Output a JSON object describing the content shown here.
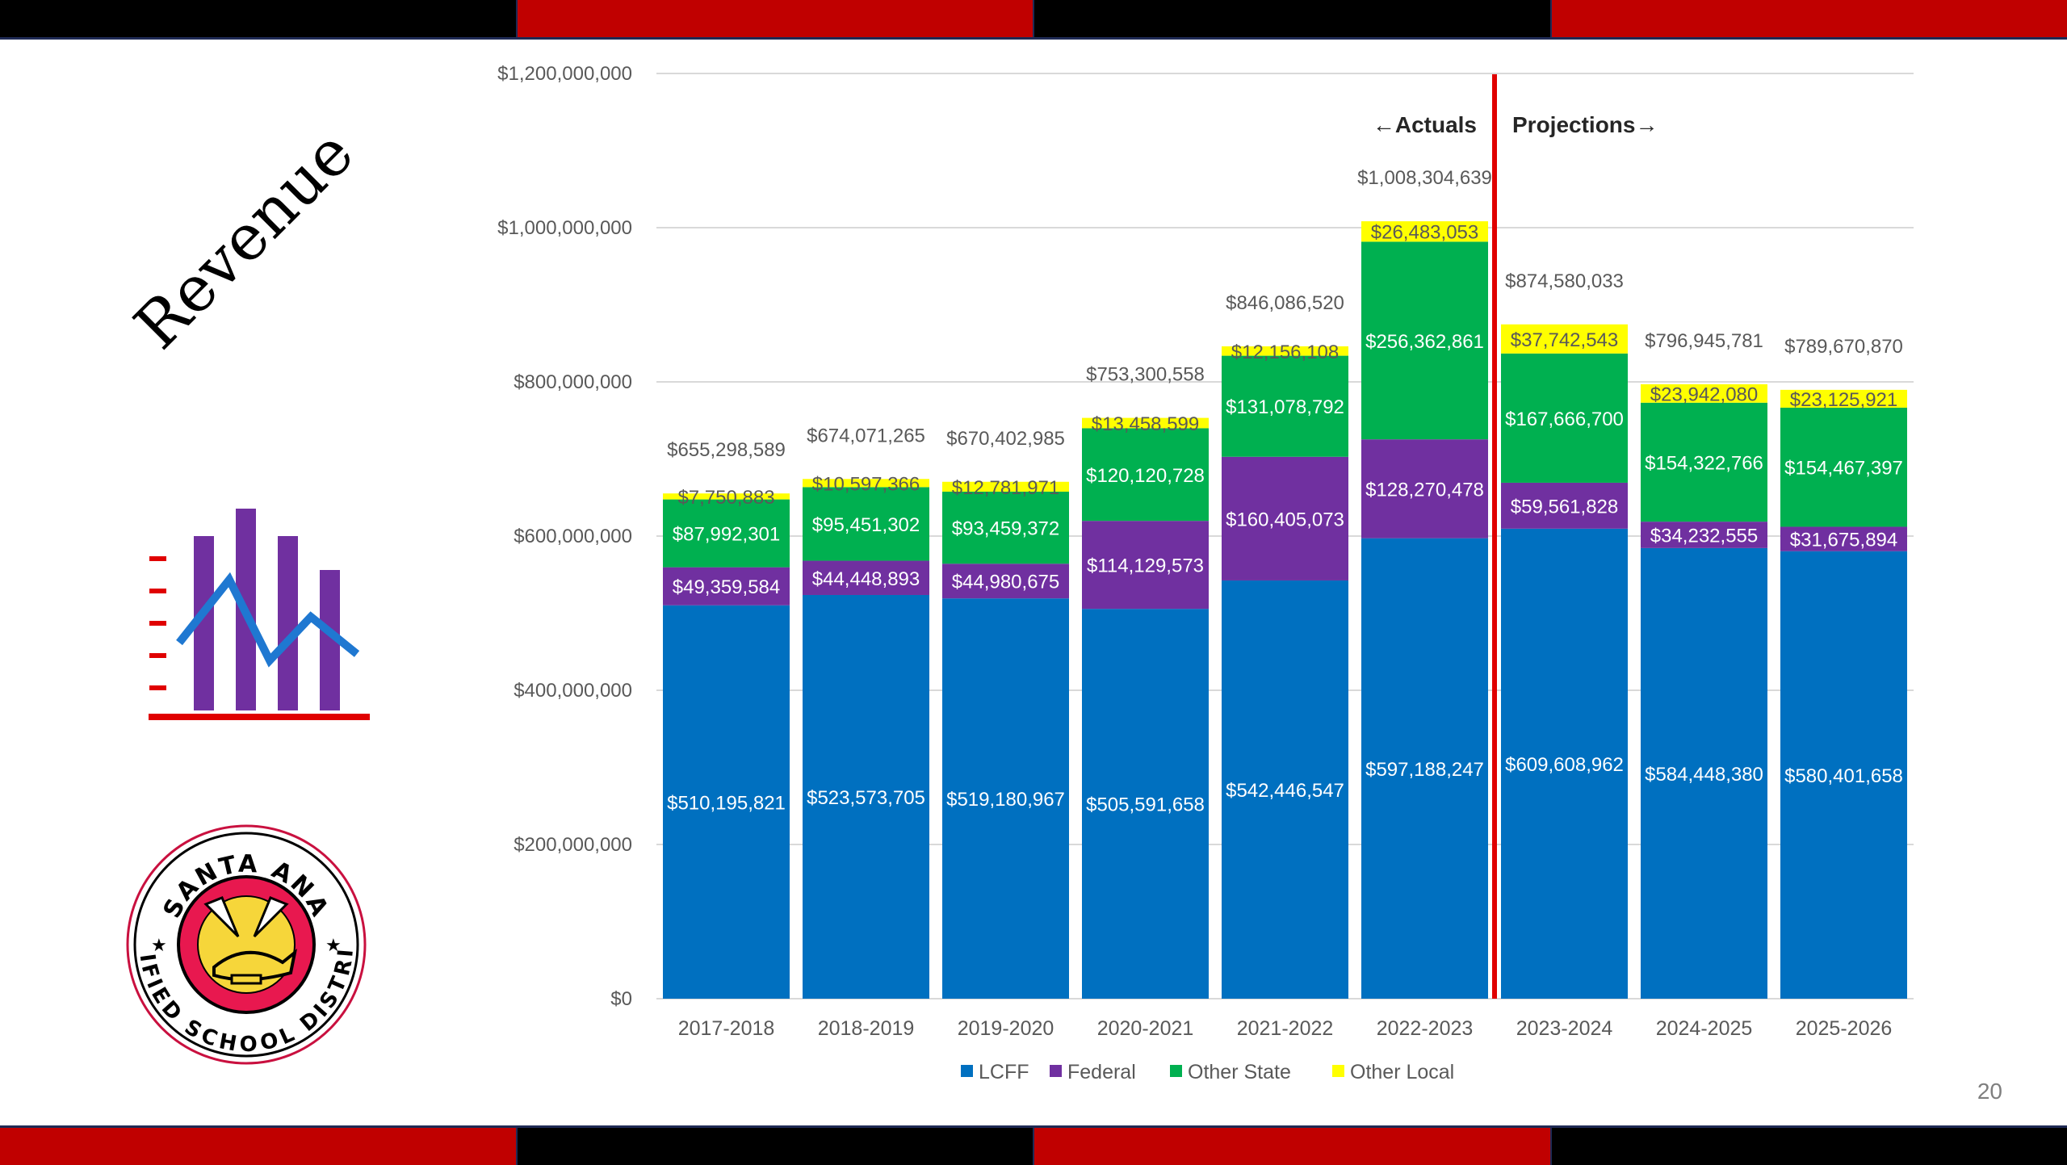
{
  "slide": {
    "title": "Revenue",
    "page_number": "20",
    "band_colors": [
      "#000000",
      "#c00000",
      "#000000",
      "#c00000"
    ],
    "band_colors_bottom": [
      "#c00000",
      "#000000",
      "#c00000",
      "#000000"
    ],
    "icon": "bar-line-chart-icon",
    "logo": {
      "name": "santa-ana-unified-school-district-seal",
      "text_top": "SANTA ANA",
      "text_bottom": "UNIFIED SCHOOL DISTRICT"
    }
  },
  "chart_data": {
    "type": "bar",
    "stacked": true,
    "title": "",
    "xlabel": "",
    "ylabel": "",
    "ylim": [
      0,
      1200000000
    ],
    "y_ticks": [
      0,
      200000000,
      400000000,
      600000000,
      800000000,
      1000000000,
      1200000000
    ],
    "y_tick_labels": [
      "$0",
      "$200,000,000",
      "$400,000,000",
      "$600,000,000",
      "$800,000,000",
      "$1,000,000,000",
      "$1,200,000,000"
    ],
    "grid": true,
    "legend_position": "bottom",
    "categories": [
      "2017-2018",
      "2018-2019",
      "2019-2020",
      "2020-2021",
      "2021-2022",
      "2022-2023",
      "2023-2024",
      "2024-2025",
      "2025-2026"
    ],
    "series": [
      {
        "name": "LCFF",
        "color": "#0070c0",
        "values": [
          510195821,
          523573705,
          519180967,
          505591658,
          542446547,
          597188247,
          609608962,
          584448380,
          580401658
        ],
        "labels": [
          "$510,195,821",
          "$523,573,705",
          "$519,180,967",
          "$505,591,658",
          "$542,446,547",
          "$597,188,247",
          "$609,608,962",
          "$584,448,380",
          "$580,401,658"
        ]
      },
      {
        "name": "Federal",
        "color": "#7030a0",
        "values": [
          49359584,
          44448893,
          44980675,
          114129573,
          160405073,
          128270478,
          59561828,
          34232555,
          31675894
        ],
        "labels": [
          "$49,359,584",
          "$44,448,893",
          "$44,980,675",
          "$114,129,573",
          "$160,405,073",
          "$128,270,478",
          "$59,561,828",
          "$34,232,555",
          "$31,675,894"
        ]
      },
      {
        "name": "Other State",
        "color": "#00b050",
        "values": [
          87992301,
          95451302,
          93459372,
          120120728,
          131078792,
          256362861,
          167666700,
          154322766,
          154467397
        ],
        "labels": [
          "$87,992,301",
          "$95,451,302",
          "$93,459,372",
          "$120,120,728",
          "$131,078,792",
          "$256,362,861",
          "$167,666,700",
          "$154,322,766",
          "$154,467,397"
        ]
      },
      {
        "name": "Other Local",
        "color": "#ffff00",
        "values": [
          7750883,
          10597366,
          12781971,
          13458599,
          12156108,
          26483053,
          37742543,
          23942080,
          23125921
        ],
        "labels": [
          "$7,750,883",
          "$10,597,366",
          "$12,781,971",
          "$13,458,599",
          "$12,156,108",
          "$26,483,053",
          "$37,742,543",
          "$23,942,080",
          "$23,125,921"
        ]
      }
    ],
    "totals": [
      655298589,
      674071265,
      670402985,
      753300558,
      846086520,
      1008304639,
      874580033,
      796945781,
      789670870
    ],
    "total_labels": [
      "$655,298,589",
      "$674,071,265",
      "$670,402,985",
      "$753,300,558",
      "$846,086,520",
      "$1,008,304,639",
      "$874,580,033",
      "$796,945,781",
      "$789,670,870"
    ],
    "annotations": {
      "divider_after_category": "2022-2023",
      "divider_color": "#e00000",
      "left_label": "Actuals",
      "right_label": "Projections"
    }
  }
}
